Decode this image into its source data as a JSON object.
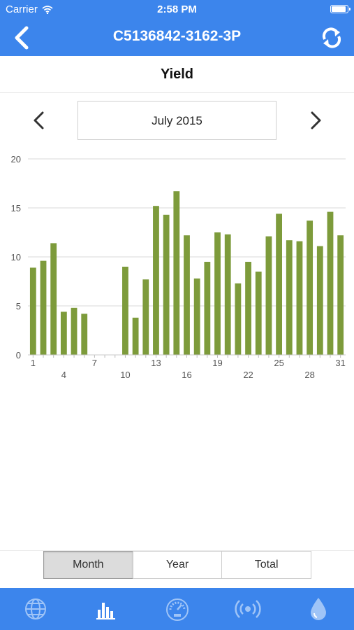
{
  "status": {
    "carrier": "Carrier",
    "time": "2:58 PM",
    "battery_level": 1.0
  },
  "header": {
    "title": "C5136842-3162-3P"
  },
  "section": {
    "title": "Yield"
  },
  "period": {
    "label": "July 2015"
  },
  "segments": {
    "items": [
      "Month",
      "Year",
      "Total"
    ],
    "selected": "Month"
  },
  "tabs": [
    "globe-icon",
    "bar-chart-icon",
    "gauge-icon",
    "broadcast-icon",
    "water-drop-icon"
  ],
  "colors": {
    "accent": "#3c85ec",
    "bar": "#7d9b3b",
    "grid": "#d9d9d9"
  },
  "chart_data": {
    "type": "bar",
    "categories": [
      "1",
      "2",
      "3",
      "4",
      "5",
      "6",
      "7",
      "8",
      "9",
      "10",
      "11",
      "12",
      "13",
      "14",
      "15",
      "16",
      "17",
      "18",
      "19",
      "20",
      "21",
      "22",
      "23",
      "24",
      "25",
      "26",
      "27",
      "28",
      "29",
      "30",
      "31"
    ],
    "tick_labels_top": [
      "1",
      "7",
      "13",
      "19",
      "25",
      "31"
    ],
    "tick_labels_bottom": [
      "4",
      "10",
      "16",
      "22",
      "28"
    ],
    "values": [
      8.9,
      9.6,
      11.4,
      4.4,
      4.8,
      4.2,
      0,
      0,
      0,
      9.0,
      3.8,
      7.7,
      15.2,
      14.3,
      16.7,
      12.2,
      7.8,
      9.5,
      12.5,
      12.3,
      7.3,
      9.5,
      8.5,
      12.1,
      14.4,
      11.7,
      11.6,
      13.7,
      11.1,
      14.6,
      12.2
    ],
    "ylim": [
      0,
      20
    ],
    "yticks": [
      0,
      5,
      10,
      15,
      20
    ],
    "grid": true
  }
}
